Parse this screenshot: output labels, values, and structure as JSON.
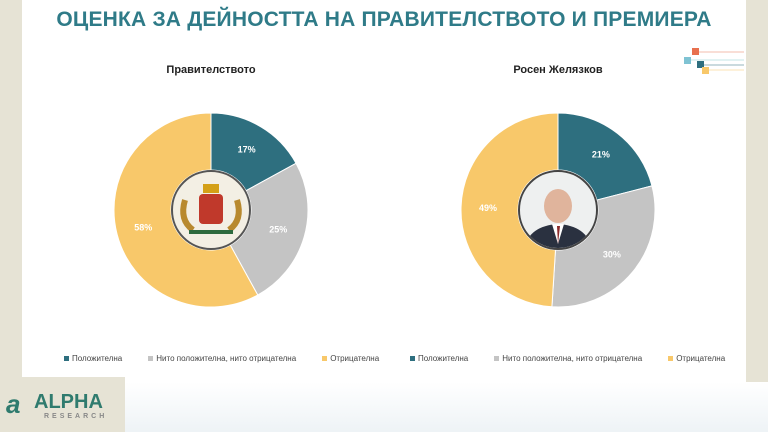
{
  "title": "ОЦЕНКА ЗА ДЕЙНОСТТА НА ПРАВИТЕЛСТВОТО И ПРЕМИЕРА",
  "colors": {
    "positive": "#2e6f7f",
    "neutral": "#c4c4c4",
    "negative": "#f8c86a",
    "title": "#2f7b88"
  },
  "chart_data": [
    {
      "type": "pie",
      "title": "Правителството",
      "categories": [
        "Положителна",
        "Нито положителна, нито отрицателна",
        "Отрицателна"
      ],
      "values": [
        17,
        25,
        58
      ],
      "labels": [
        "17%",
        "25%",
        "58%"
      ]
    },
    {
      "type": "pie",
      "title": "Росен Желязков",
      "categories": [
        "Положителна",
        "Нито положителна, нито отрицателна",
        "Отрицателна"
      ],
      "values": [
        21,
        30,
        49
      ],
      "labels": [
        "21%",
        "30%",
        "49%"
      ]
    }
  ],
  "logo": {
    "name": "ALPHA",
    "sub": "RESEARCH"
  }
}
